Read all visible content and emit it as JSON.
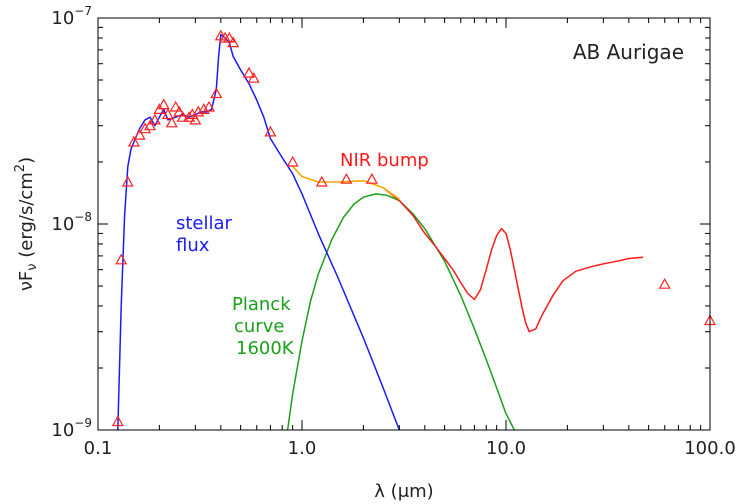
{
  "chart_data": {
    "type": "line",
    "title": "AB Aurigae",
    "xlabel": "λ (μm)",
    "ylabel_parts": {
      "nu": "ν",
      "F": "F",
      "sub": "ν",
      "units": " (erg/s/cm",
      "sup2": "2",
      "close": ")"
    },
    "x_scale": "log",
    "y_scale": "log",
    "xlim": [
      0.1,
      100
    ],
    "ylim": [
      1e-09,
      1e-07
    ],
    "x_ticks": [
      {
        "value": 0.1,
        "label": "0.1"
      },
      {
        "value": 1,
        "label": "1.0"
      },
      {
        "value": 10,
        "label": "10.0"
      },
      {
        "value": 100,
        "label": "100.0"
      }
    ],
    "y_ticks": [
      {
        "value": 1e-09,
        "base": "10",
        "exp": "−9"
      },
      {
        "value": 1e-08,
        "base": "10",
        "exp": "−8"
      },
      {
        "value": 1e-07,
        "base": "10",
        "exp": "−7"
      }
    ],
    "colors": {
      "stellar": "#1a1aff",
      "nir": "#ff1a1a",
      "planck": "#1aa01a",
      "sum": "#ffa500",
      "markers": "#ff2020",
      "axes": "#000000"
    },
    "annotations": [
      {
        "id": "stellar-flux-label",
        "lines": [
          "stellar",
          "flux"
        ],
        "color": "#1a1aff"
      },
      {
        "id": "nir-bump-label",
        "lines": [
          "NIR bump"
        ],
        "color": "#ff1a1a"
      },
      {
        "id": "planck-label",
        "lines": [
          "Planck",
          "curve",
          "1600K"
        ],
        "color": "#1aa01a"
      }
    ],
    "series": [
      {
        "id": "stellar",
        "x": [
          0.125,
          0.13,
          0.135,
          0.14,
          0.145,
          0.15,
          0.16,
          0.17,
          0.18,
          0.19,
          0.2,
          0.21,
          0.22,
          0.24,
          0.26,
          0.28,
          0.3,
          0.32,
          0.34,
          0.36,
          0.38,
          0.39,
          0.4,
          0.42,
          0.44,
          0.46,
          0.5,
          0.55,
          0.6,
          0.65,
          0.7,
          0.8,
          0.9,
          1.0,
          1.2,
          1.5,
          2.0,
          2.5,
          3.0
        ],
        "y": [
          1e-09,
          4e-09,
          1.1e-08,
          1.9e-08,
          2.3e-08,
          2.5e-08,
          2.9e-08,
          3.2e-08,
          3.3e-08,
          3e-08,
          3.3e-08,
          3.6e-08,
          3.2e-08,
          3.3e-08,
          3.4e-08,
          3.3e-08,
          3.4e-08,
          3.5e-08,
          3.5e-08,
          3.6e-08,
          4.5e-08,
          6.5e-08,
          8.3e-08,
          8e-08,
          7.6e-08,
          6.5e-08,
          5.6e-08,
          4.8e-08,
          4e-08,
          3.3e-08,
          2.6e-08,
          2.1e-08,
          1.75e-08,
          1.4e-08,
          9e-09,
          5.5e-09,
          2.8e-09,
          1.6e-09,
          1e-09
        ]
      },
      {
        "id": "nir",
        "x": [
          2.5,
          3.0,
          3.5,
          4.0,
          4.5,
          5.0,
          5.5,
          6.0,
          6.5,
          7.0,
          7.5,
          8.0,
          8.5,
          9.0,
          9.5,
          10.0,
          10.5,
          11.0,
          11.5,
          12.0,
          12.5,
          13.0,
          14.0,
          15.0,
          17.0,
          19.0,
          22.0,
          26.0,
          30.0,
          35.0,
          40.0,
          47.0
        ],
        "y": [
          1.5e-08,
          1.3e-08,
          1.1e-08,
          9e-09,
          7.8e-09,
          6.8e-09,
          6e-09,
          5.2e-09,
          4.6e-09,
          4.3e-09,
          4.8e-09,
          6e-09,
          7.5e-09,
          8.8e-09,
          9.5e-09,
          9e-09,
          7.5e-09,
          6e-09,
          4.8e-09,
          3.9e-09,
          3.3e-09,
          3e-09,
          3.1e-09,
          3.6e-09,
          4.5e-09,
          5.3e-09,
          5.9e-09,
          6.2e-09,
          6.4e-09,
          6.6e-09,
          6.8e-09,
          6.9e-09
        ]
      },
      {
        "id": "sum",
        "x": [
          0.9,
          1.0,
          1.2,
          1.5,
          2.0,
          2.5,
          3.0
        ],
        "y": [
          1.9e-08,
          1.7e-08,
          1.6e-08,
          1.6e-08,
          1.62e-08,
          1.5e-08,
          1.32e-08
        ]
      },
      {
        "id": "planck",
        "x": [
          0.85,
          0.9,
          1.0,
          1.1,
          1.2,
          1.4,
          1.6,
          1.8,
          2.0,
          2.3,
          2.6,
          3.0,
          3.5,
          4.0,
          5.0,
          6.0,
          7.0,
          8.0,
          9.0,
          10.0,
          11.0,
          11.5
        ],
        "y": [
          1e-09,
          1.5e-09,
          2.7e-09,
          4.2e-09,
          5.7e-09,
          8.4e-09,
          1.08e-08,
          1.25e-08,
          1.35e-08,
          1.4e-08,
          1.38e-08,
          1.3e-08,
          1.12e-08,
          9.5e-09,
          6.6e-09,
          4.5e-09,
          3.1e-09,
          2.2e-09,
          1.6e-09,
          1.2e-09,
          1e-09,
          9e-10
        ]
      },
      {
        "id": "photometry",
        "marker": "open-triangle",
        "x": [
          0.125,
          0.13,
          0.14,
          0.15,
          0.16,
          0.17,
          0.18,
          0.19,
          0.2,
          0.21,
          0.22,
          0.23,
          0.24,
          0.25,
          0.26,
          0.28,
          0.29,
          0.3,
          0.31,
          0.33,
          0.35,
          0.38,
          0.4,
          0.42,
          0.44,
          0.46,
          0.55,
          0.58,
          0.7,
          0.9,
          1.25,
          1.65,
          2.2,
          60.0,
          100.0
        ],
        "y": [
          1.1e-09,
          6.7e-09,
          1.6e-08,
          2.5e-08,
          2.7e-08,
          2.9e-08,
          3e-08,
          3.2e-08,
          3.6e-08,
          3.8e-08,
          3.4e-08,
          3.1e-08,
          3.7e-08,
          3.5e-08,
          3.3e-08,
          3.3e-08,
          3.4e-08,
          3.2e-08,
          3.5e-08,
          3.6e-08,
          3.7e-08,
          4.3e-08,
          8.2e-08,
          8e-08,
          8e-08,
          7.6e-08,
          5.4e-08,
          5.1e-08,
          2.8e-08,
          2e-08,
          1.6e-08,
          1.65e-08,
          1.65e-08,
          5.1e-09,
          3.4e-09
        ]
      }
    ]
  }
}
